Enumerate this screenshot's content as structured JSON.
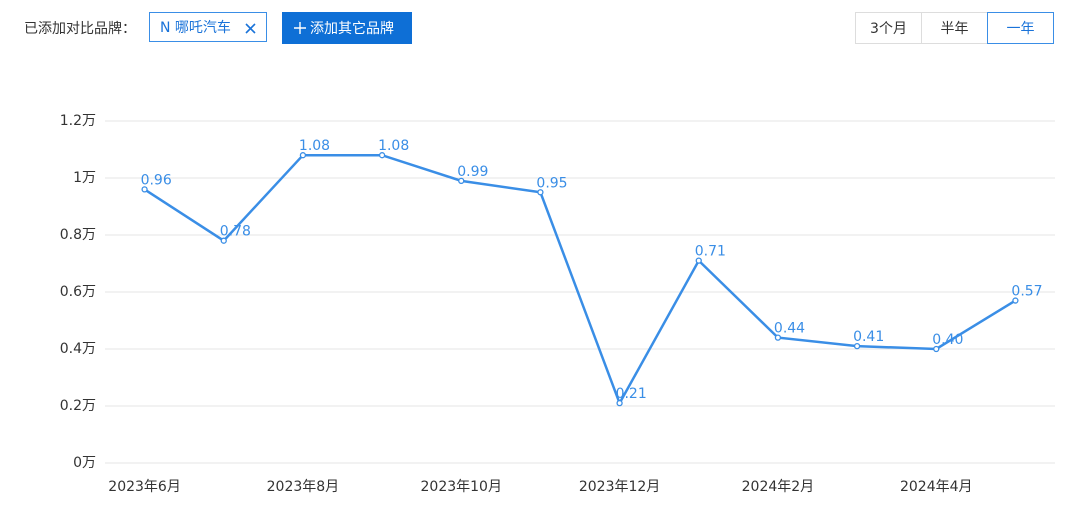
{
  "toolbar": {
    "label": "已添加对比品牌：",
    "brand_chip": "N 哪吒汽车",
    "add_button": "添加其它品牌",
    "ranges": [
      "3个月",
      "半年",
      "一年"
    ],
    "active_range": 2
  },
  "chart_data": {
    "type": "line",
    "categories": [
      "2023年6月",
      null,
      "2023年8月",
      null,
      "2023年10月",
      null,
      "2023年12月",
      null,
      "2024年2月",
      null,
      "2024年4月",
      null
    ],
    "values": [
      0.96,
      0.78,
      1.08,
      1.08,
      0.99,
      0.95,
      0.21,
      0.71,
      0.44,
      0.41,
      0.4,
      0.57
    ],
    "value_labels": [
      "0.96",
      "0.78",
      "1.08",
      "1.08",
      "0.99",
      "0.95",
      "0.21",
      "0.71",
      "0.44",
      "0.41",
      "0.40",
      "0.57"
    ],
    "color": "#3a8ee6",
    "ylim": [
      0,
      1.2
    ],
    "yticks": [
      {
        "value": 0,
        "label": "0万"
      },
      {
        "value": 0.2,
        "label": "0.2万"
      },
      {
        "value": 0.4,
        "label": "0.4万"
      },
      {
        "value": 0.6,
        "label": "0.6万"
      },
      {
        "value": 0.8,
        "label": "0.8万"
      },
      {
        "value": 1,
        "label": "1万"
      },
      {
        "value": 1.2,
        "label": "1.2万"
      }
    ],
    "grid": true
  }
}
